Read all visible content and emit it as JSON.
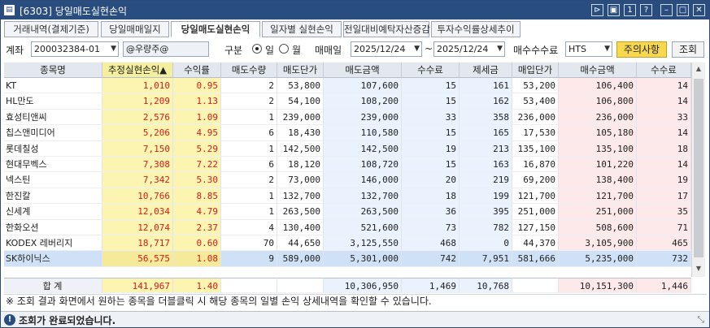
{
  "window": {
    "title": "[6303] 당일매도실현손익"
  },
  "tabs": [
    "거래내역(결제기준)",
    "당일매매일지",
    "당일매도실현손익",
    "일자별 실현손익",
    "전일대비예탁자산증감",
    "투자수익률상세추이"
  ],
  "filter": {
    "account_label": "계좌",
    "account_value": "200032384-01",
    "account_name": "@우량주@",
    "type_label": "구분",
    "radio_day": "일",
    "radio_month": "월",
    "date_label": "매매일",
    "date_from": "2025/12/24",
    "tilde": "~",
    "date_to": "2025/12/24",
    "fee_label": "매수수수료",
    "fee_value": "HTS",
    "notice_button": "주의사항",
    "search_button": "조회"
  },
  "columns": [
    "종목명",
    "추정실현손익▲",
    "수익률",
    "매도수량",
    "매도단가",
    "매도금액",
    "수수료",
    "제세금",
    "매입단가",
    "매수금액",
    "수수료"
  ],
  "rows": [
    [
      "KT",
      "1,010",
      "0.95",
      "2",
      "53,800",
      "107,600",
      "15",
      "161",
      "53,200",
      "106,400",
      "14"
    ],
    [
      "HL만도",
      "1,209",
      "1.13",
      "2",
      "54,100",
      "108,200",
      "15",
      "162",
      "53,400",
      "106,800",
      "14"
    ],
    [
      "효성티앤씨",
      "2,576",
      "1.09",
      "1",
      "239,000",
      "239,000",
      "33",
      "358",
      "236,000",
      "236,000",
      "33"
    ],
    [
      "칩스앤미디어",
      "5,206",
      "4.95",
      "6",
      "18,430",
      "110,580",
      "15",
      "165",
      "17,530",
      "105,180",
      "14"
    ],
    [
      "롯데칠성",
      "7,150",
      "5.29",
      "1",
      "142,500",
      "142,500",
      "19",
      "213",
      "135,100",
      "135,100",
      "18"
    ],
    [
      "현대무벡스",
      "7,308",
      "7.22",
      "6",
      "18,120",
      "108,720",
      "15",
      "163",
      "16,870",
      "101,220",
      "14"
    ],
    [
      "넥스틴",
      "7,342",
      "5.30",
      "2",
      "73,000",
      "146,000",
      "20",
      "219",
      "69,200",
      "138,400",
      "19"
    ],
    [
      "한진칼",
      "10,766",
      "8.85",
      "1",
      "132,700",
      "132,700",
      "18",
      "199",
      "121,700",
      "121,700",
      "17"
    ],
    [
      "신세계",
      "12,034",
      "4.79",
      "1",
      "263,500",
      "263,500",
      "36",
      "395",
      "251,000",
      "251,000",
      "35"
    ],
    [
      "한화오션",
      "12,074",
      "2.37",
      "4",
      "130,400",
      "521,600",
      "73",
      "782",
      "127,150",
      "508,600",
      "71"
    ],
    [
      "KODEX 레버리지",
      "18,717",
      "0.60",
      "70",
      "44,650",
      "3,125,550",
      "468",
      "0",
      "44,370",
      "3,105,900",
      "465"
    ],
    [
      "SK하이닉스",
      "56,575",
      "1.08",
      "9",
      "589,000",
      "5,301,000",
      "742",
      "7,951",
      "581,666",
      "5,235,000",
      "732"
    ]
  ],
  "total": {
    "label": "합 계",
    "pnl": "141,967",
    "rate": "1.40",
    "sell_amount": "10,306,950",
    "fee": "1,469",
    "tax": "10,768",
    "buy_amount": "10,151,300",
    "buy_fee": "1,446"
  },
  "note": "※ 조회 결과 화면에서 원하는 종목을 더블클릭 시 해당 종목의 일별 손익 상세내역을 확인할 수 있습니다.",
  "status": "조회가 완료되었습니다.",
  "colors": {
    "titlebar": "#2a4d80",
    "profit": "#d91a1a",
    "highlight": "#fbf5b1",
    "sell_bg": "#e9f2fd",
    "buy_bg": "#fde9ea"
  }
}
